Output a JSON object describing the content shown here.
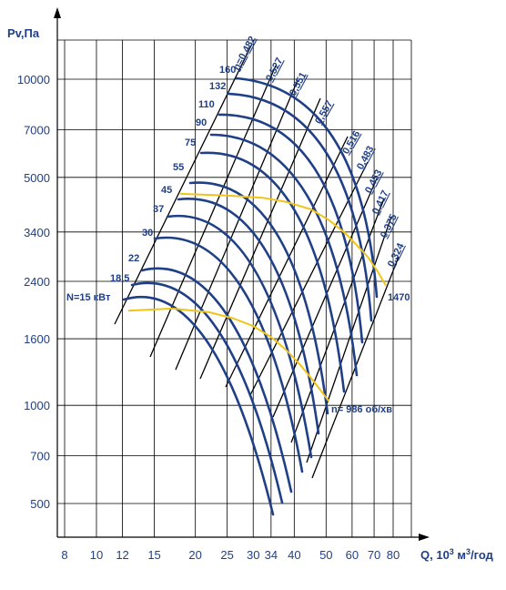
{
  "chart_data": {
    "type": "line",
    "ylabel": "Pv,Па",
    "xlabel": "Q, 10³ м³/год",
    "x_ticks": [
      "8",
      "10",
      "12",
      "15",
      "20",
      "25",
      "30",
      "34",
      "40",
      "50",
      "60",
      "70",
      "80"
    ],
    "y_ticks": [
      "500",
      "700",
      "1000",
      "1600",
      "2400",
      "3400",
      "5000",
      "7000",
      "10000"
    ],
    "x_log": true,
    "y_log": true,
    "xlim": [
      7.5,
      90
    ],
    "ylim": [
      420,
      15000
    ],
    "grid": true,
    "power_lines": [
      {
        "label": "N=15 кВт"
      },
      {
        "label": "18,5"
      },
      {
        "label": "22"
      },
      {
        "label": "30"
      },
      {
        "label": "37"
      },
      {
        "label": "45"
      },
      {
        "label": "55"
      },
      {
        "label": "75"
      },
      {
        "label": "90"
      },
      {
        "label": "110"
      },
      {
        "label": "132"
      },
      {
        "label": "160"
      }
    ],
    "efficiency_lines": [
      {
        "label": "η=0,482"
      },
      {
        "label": "0,527"
      },
      {
        "label": "0,551"
      },
      {
        "label": "0,557"
      },
      {
        "label": "0,516"
      },
      {
        "label": "0,483"
      },
      {
        "label": "0,453"
      },
      {
        "label": "0,417"
      },
      {
        "label": "0,375"
      },
      {
        "label": "0,324"
      }
    ],
    "speed_curves": [
      {
        "label": "n= 986 об/хв",
        "q": [
          12.5,
          17,
          22,
          26,
          30,
          34,
          38,
          42,
          46,
          51
        ],
        "p": [
          1950,
          1980,
          1930,
          1850,
          1750,
          1620,
          1470,
          1320,
          1180,
          1030
        ]
      },
      {
        "label": "1470",
        "q": [
          18,
          25,
          32,
          38,
          45,
          51,
          57,
          62,
          67,
          72,
          76
        ],
        "p": [
          4450,
          4400,
          4330,
          4200,
          3990,
          3700,
          3380,
          3100,
          2850,
          2560,
          2330
        ]
      }
    ]
  },
  "colors": {
    "blue": "#1f3f86",
    "yellow": "#f0c419",
    "grid": "#000000",
    "background": "#ffffff"
  }
}
